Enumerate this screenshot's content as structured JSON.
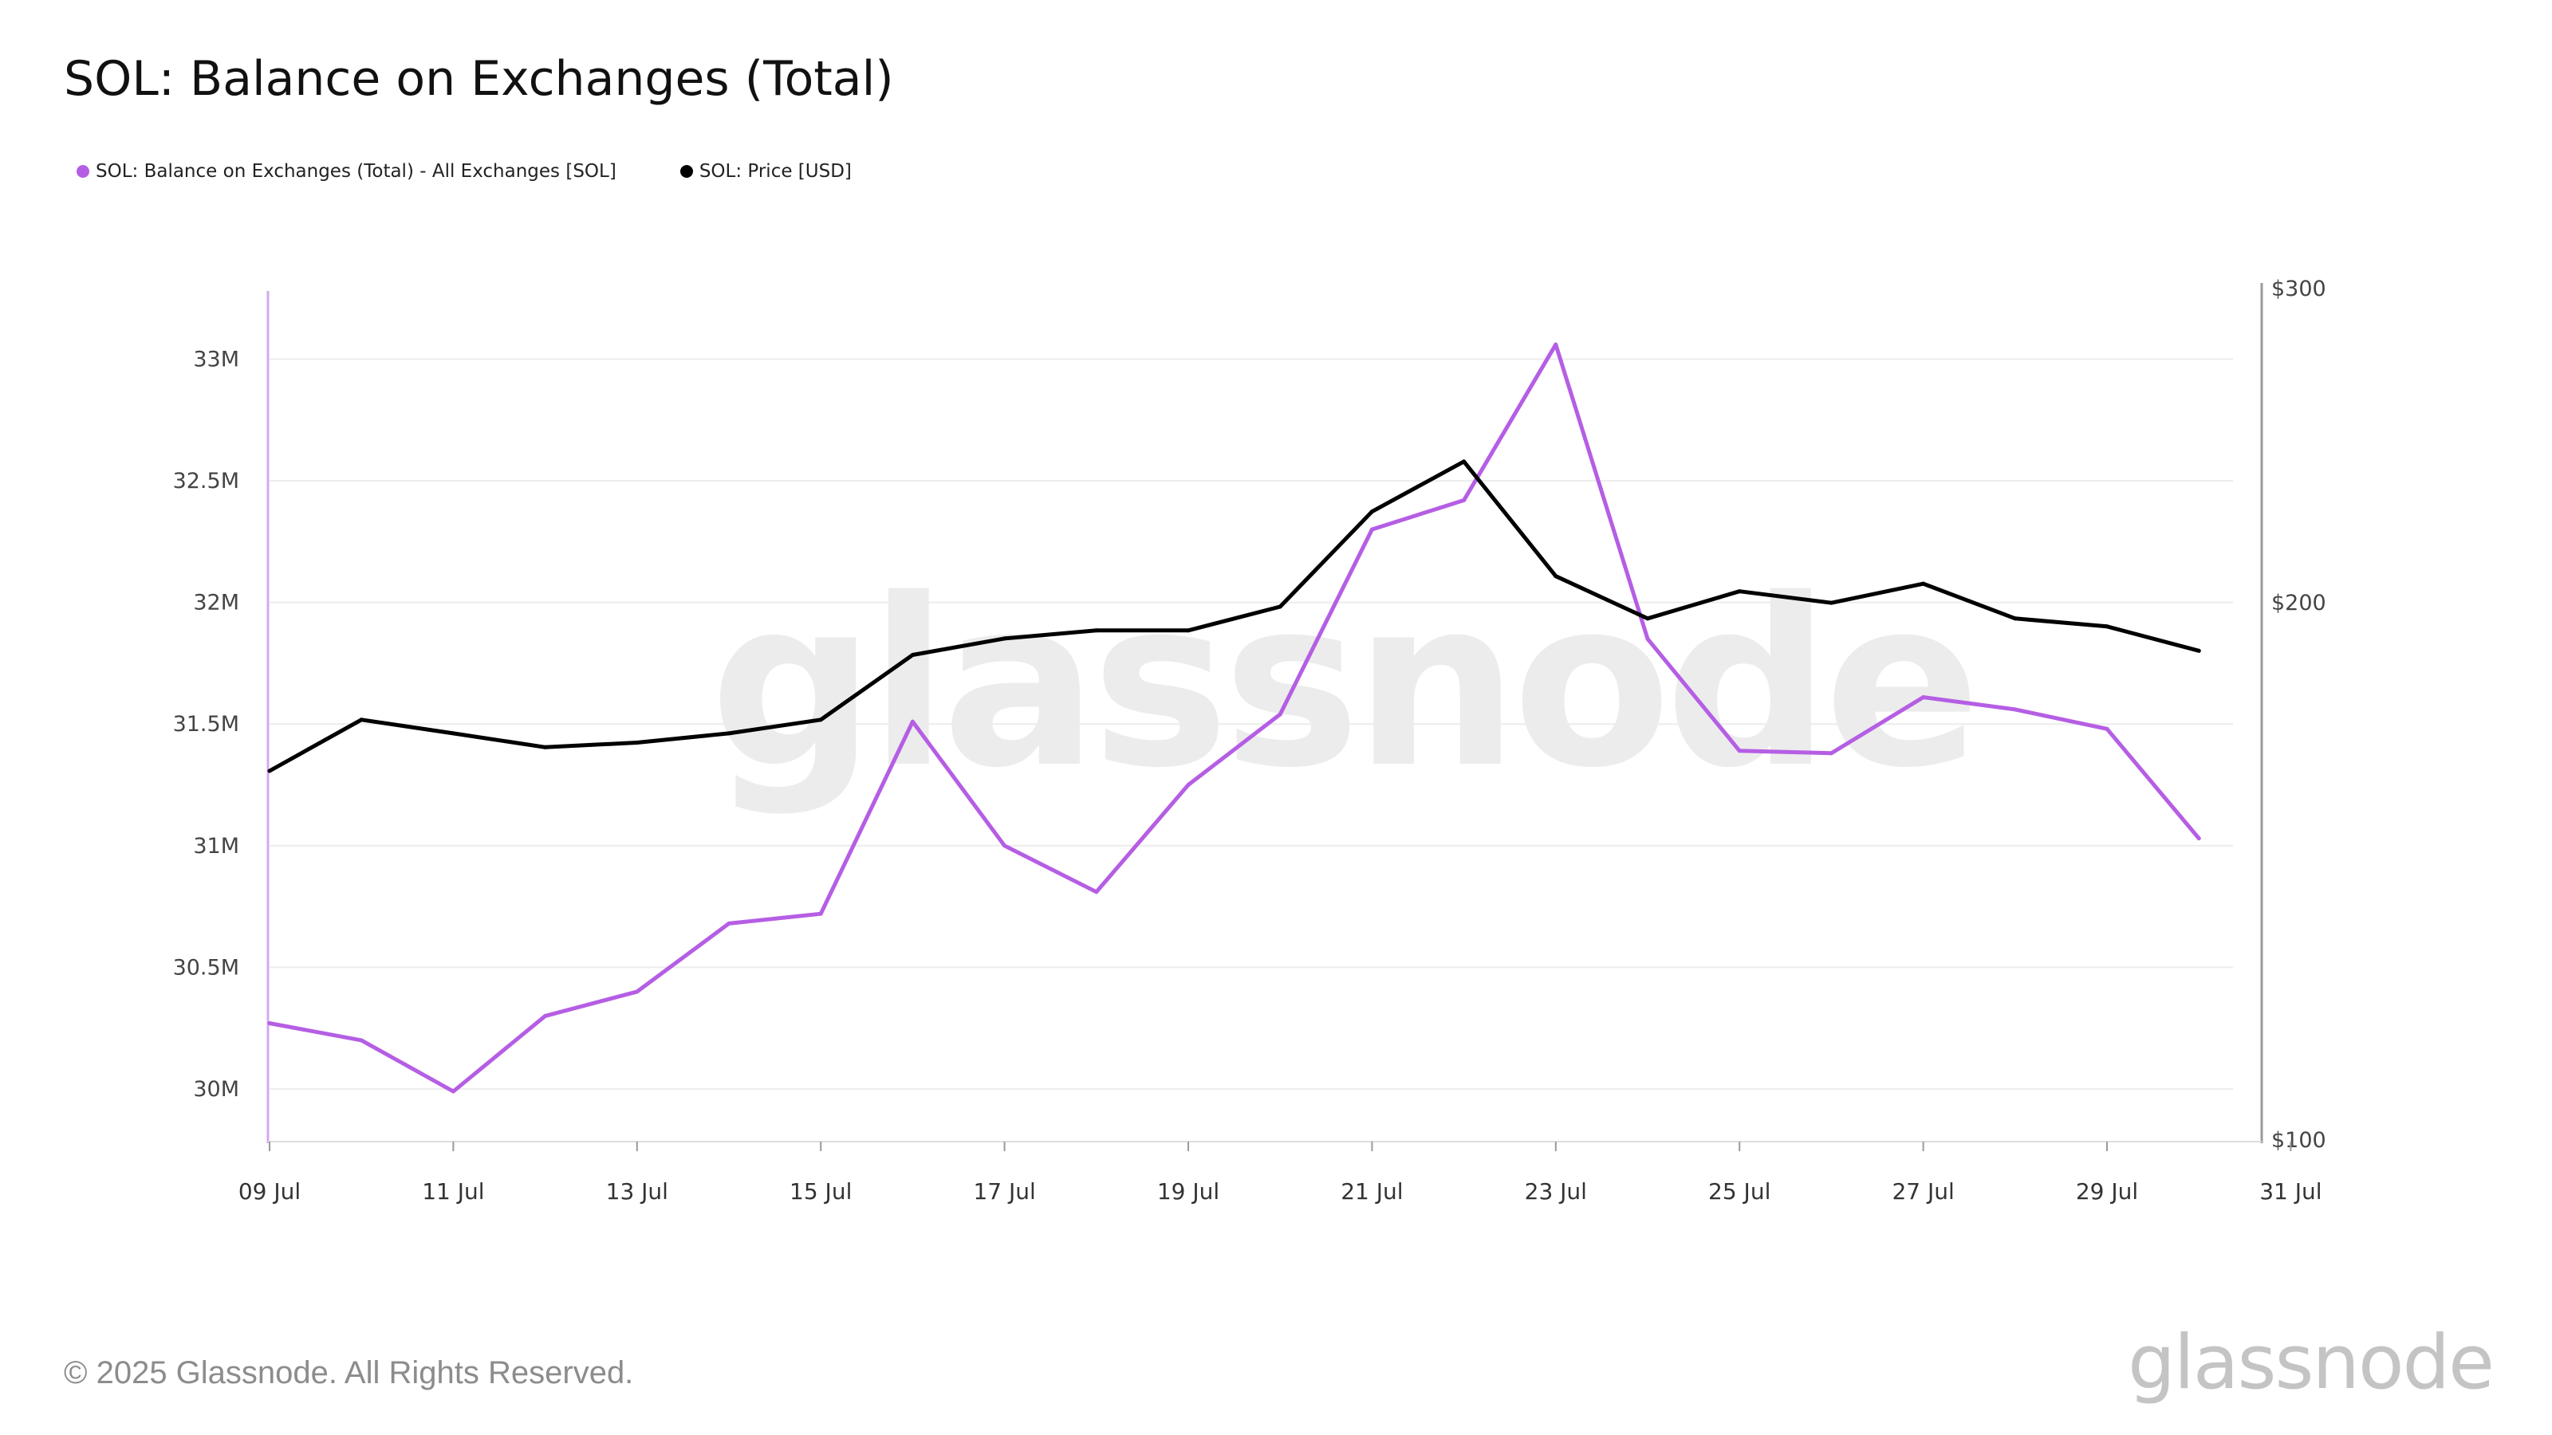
{
  "title": "SOL: Balance on Exchanges (Total)",
  "legend": {
    "items": [
      {
        "label": "SOL: Balance on Exchanges (Total) - All Exchanges [SOL]",
        "color": "#b55ee4"
      },
      {
        "label": "SOL: Price [USD]",
        "color": "#000000"
      }
    ]
  },
  "footer": {
    "copyright": "© 2025 Glassnode. All Rights Reserved.",
    "brand": "glassnode"
  },
  "watermark": "glassnode",
  "chart_data": {
    "type": "line",
    "title": "SOL: Balance on Exchanges (Total)",
    "x": [
      "09 Jul",
      "10 Jul",
      "11 Jul",
      "12 Jul",
      "13 Jul",
      "14 Jul",
      "15 Jul",
      "16 Jul",
      "17 Jul",
      "18 Jul",
      "19 Jul",
      "20 Jul",
      "21 Jul",
      "22 Jul",
      "23 Jul",
      "24 Jul",
      "25 Jul",
      "26 Jul",
      "27 Jul",
      "28 Jul",
      "29 Jul",
      "30 Jul"
    ],
    "x_ticks": [
      "09 Jul",
      "11 Jul",
      "13 Jul",
      "15 Jul",
      "17 Jul",
      "19 Jul",
      "21 Jul",
      "23 Jul",
      "25 Jul",
      "27 Jul",
      "29 Jul",
      "31 Jul"
    ],
    "series": [
      {
        "name": "SOL: Balance on Exchanges (Total) - All Exchanges [SOL]",
        "axis": "left",
        "color": "#b55ee4",
        "values": [
          30270000,
          30200000,
          29990000,
          30300000,
          30400000,
          30680000,
          30720000,
          31510000,
          31000000,
          30810000,
          31250000,
          31540000,
          32300000,
          32420000,
          33060000,
          31850000,
          31390000,
          31380000,
          31610000,
          31560000,
          31480000,
          31030000
        ]
      },
      {
        "name": "SOL: Price [USD]",
        "axis": "right",
        "color": "#000000",
        "values": [
          161,
          172,
          169,
          166,
          167,
          169,
          172,
          187,
          191,
          193,
          193,
          199,
          225,
          240,
          207,
          196,
          203,
          200,
          205,
          196,
          194,
          188
        ]
      }
    ],
    "y_left": {
      "ticks": [
        "30M",
        "30.5M",
        "31M",
        "31.5M",
        "32M",
        "32.5M",
        "33M"
      ],
      "tick_values": [
        30000000,
        30500000,
        31000000,
        31500000,
        32000000,
        32500000,
        33000000
      ],
      "ylim": [
        29790000,
        33290000
      ]
    },
    "y_right": {
      "ticks": [
        "$100",
        "$200",
        "$300"
      ],
      "tick_values": [
        100,
        200,
        300
      ],
      "ylim": [
        100,
        300
      ],
      "scale": "log"
    },
    "grid": true,
    "legend_position": "top-left"
  }
}
